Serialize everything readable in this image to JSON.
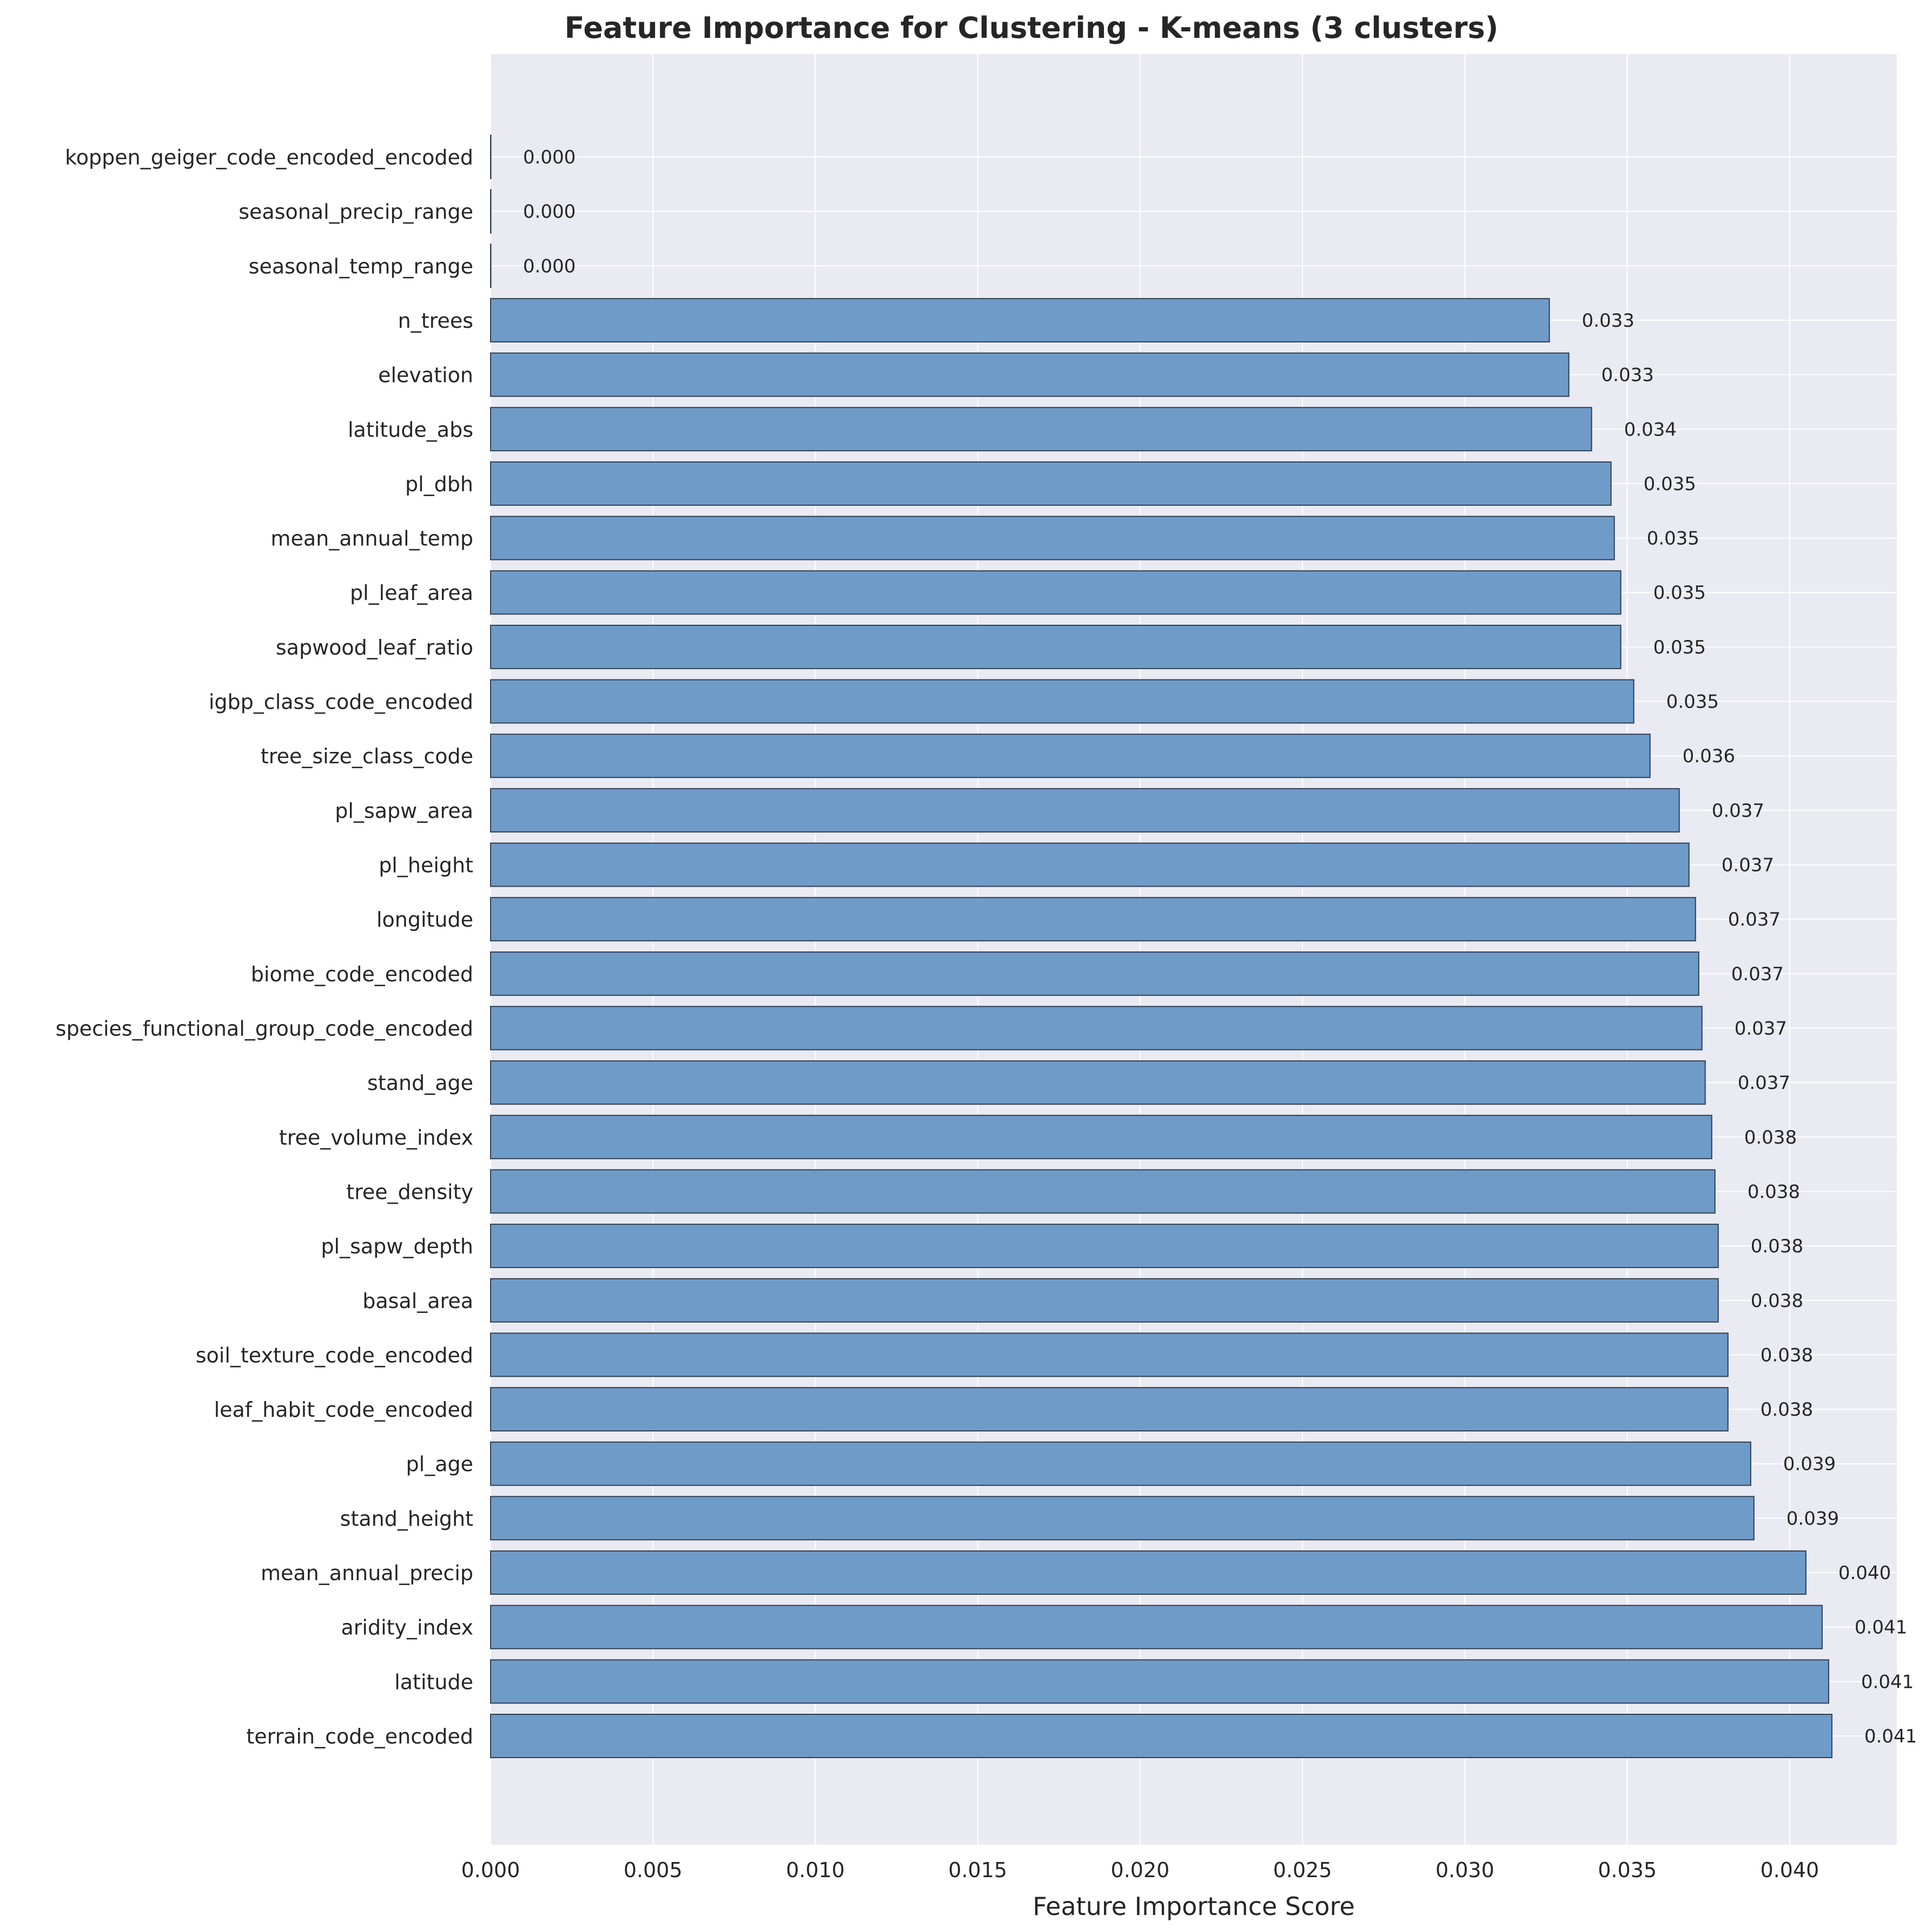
{
  "chart_data": {
    "type": "bar",
    "orientation": "horizontal",
    "title": "Feature Importance for Clustering - K-means (3 clusters)",
    "xlabel": "Feature Importance Score",
    "ylabel": "",
    "xlim": [
      0,
      0.0433
    ],
    "xticks": [
      "0.000",
      "0.005",
      "0.010",
      "0.015",
      "0.020",
      "0.025",
      "0.030",
      "0.035",
      "0.040"
    ],
    "grid": true,
    "bar_color": "#6f9bc8",
    "edge_color": "#2f3f52",
    "background_color": "#eaeaf2",
    "categories": [
      "koppen_geiger_code_encoded_encoded",
      "seasonal_precip_range",
      "seasonal_temp_range",
      "n_trees",
      "elevation",
      "latitude_abs",
      "pl_dbh",
      "mean_annual_temp",
      "pl_leaf_area",
      "sapwood_leaf_ratio",
      "igbp_class_code_encoded",
      "tree_size_class_code",
      "pl_sapw_area",
      "pl_height",
      "longitude",
      "biome_code_encoded",
      "species_functional_group_code_encoded",
      "stand_age",
      "tree_volume_index",
      "tree_density",
      "pl_sapw_depth",
      "basal_area",
      "soil_texture_code_encoded",
      "leaf_habit_code_encoded",
      "pl_age",
      "stand_height",
      "mean_annual_precip",
      "aridity_index",
      "latitude",
      "terrain_code_encoded"
    ],
    "values": [
      0.0,
      0.0,
      0.0,
      0.0326,
      0.0332,
      0.0339,
      0.0345,
      0.0346,
      0.0348,
      0.0348,
      0.0352,
      0.0357,
      0.0366,
      0.0369,
      0.0371,
      0.0372,
      0.0373,
      0.0374,
      0.0376,
      0.0377,
      0.0378,
      0.0378,
      0.0381,
      0.0381,
      0.0388,
      0.0389,
      0.0405,
      0.041,
      0.0412,
      0.0413
    ],
    "value_labels": [
      "0.000",
      "0.000",
      "0.000",
      "0.033",
      "0.033",
      "0.034",
      "0.035",
      "0.035",
      "0.035",
      "0.035",
      "0.035",
      "0.036",
      "0.037",
      "0.037",
      "0.037",
      "0.037",
      "0.037",
      "0.037",
      "0.038",
      "0.038",
      "0.038",
      "0.038",
      "0.038",
      "0.038",
      "0.039",
      "0.039",
      "0.040",
      "0.041",
      "0.041",
      "0.041"
    ]
  }
}
